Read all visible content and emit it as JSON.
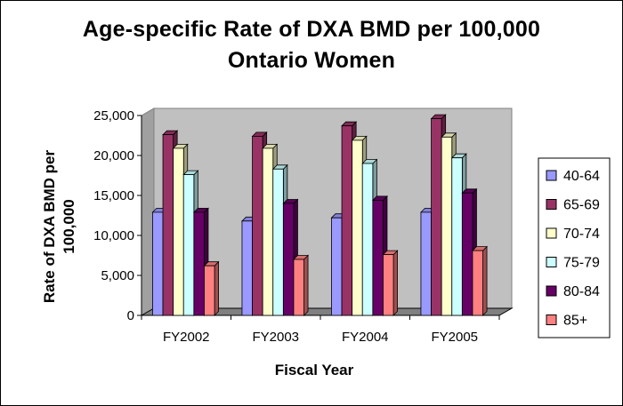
{
  "chart_data": {
    "type": "bar",
    "style": "3d-clustered-column",
    "title_lines": [
      "Age-specific Rate of DXA BMD per 100,000",
      "Ontario Women"
    ],
    "xlabel": "Fiscal Year",
    "ylabel_lines": [
      "Rate of DXA BMD per",
      "100,000"
    ],
    "categories": [
      "FY2002",
      "FY2003",
      "FY2004",
      "FY2005"
    ],
    "ylim": [
      0,
      25000
    ],
    "y_ticks": [
      0,
      5000,
      10000,
      15000,
      20000,
      25000
    ],
    "y_tick_labels": [
      "0",
      "5,000",
      "10,000",
      "15,000",
      "20,000",
      "25,000"
    ],
    "gridlines": false,
    "legend_position": "right",
    "series": [
      {
        "name": "40-64",
        "color": "#9999ff",
        "values": [
          12900,
          11800,
          12200,
          12900
        ]
      },
      {
        "name": "65-69",
        "color": "#993366",
        "values": [
          22600,
          22400,
          23700,
          24600
        ]
      },
      {
        "name": "70-74",
        "color": "#ffffcc",
        "values": [
          20900,
          20900,
          21900,
          22300
        ]
      },
      {
        "name": "75-79",
        "color": "#ccffff",
        "values": [
          17600,
          18300,
          19000,
          19700
        ]
      },
      {
        "name": "80-84",
        "color": "#660066",
        "values": [
          12900,
          14000,
          14400,
          15300
        ]
      },
      {
        "name": "85+",
        "color": "#ff8080",
        "values": [
          6200,
          7000,
          7600,
          8100
        ]
      }
    ],
    "wall_color": "#c0c0c0",
    "floor_color": "#808080"
  }
}
